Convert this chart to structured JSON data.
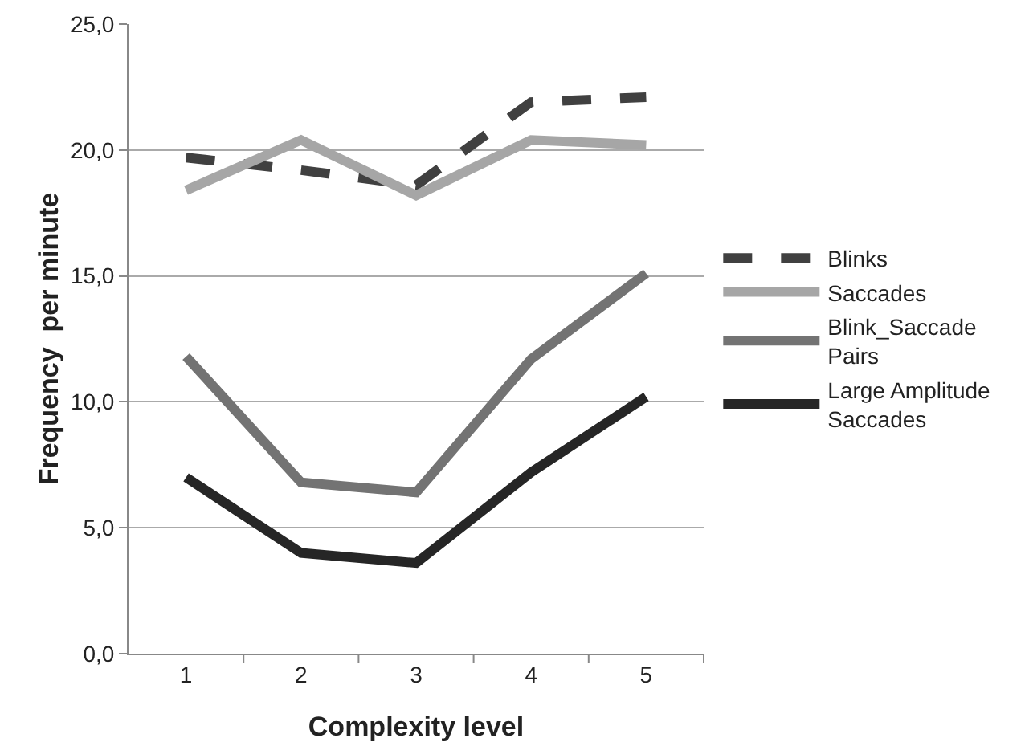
{
  "chart_data": {
    "type": "line",
    "xlabel": "Complexity level",
    "ylabel": "Frequency  per minute",
    "categories": [
      "1",
      "2",
      "3",
      "4",
      "5"
    ],
    "series": [
      {
        "name": "Blinks",
        "color": "#404040",
        "line_style": "dashed",
        "values": [
          19.7,
          19.2,
          18.6,
          21.9,
          22.1
        ]
      },
      {
        "name": "Saccades",
        "color": "#a6a6a6",
        "values": [
          18.4,
          20.4,
          18.2,
          20.4,
          20.2
        ]
      },
      {
        "name": "Blink_Saccade Pairs",
        "color": "#737373",
        "values": [
          11.8,
          6.8,
          6.4,
          11.7,
          15.1
        ]
      },
      {
        "name": "Large Amplitude Saccades",
        "color": "#262626",
        "values": [
          7.0,
          4.0,
          3.6,
          7.2,
          10.2
        ]
      }
    ],
    "ylim": [
      0,
      25
    ],
    "yticks": [
      {
        "value": 0,
        "label": "0,0"
      },
      {
        "value": 5,
        "label": "5,0"
      },
      {
        "value": 10,
        "label": "10,0"
      },
      {
        "value": 15,
        "label": "15,0"
      },
      {
        "value": 20,
        "label": "20,0"
      },
      {
        "value": 25,
        "label": "25,0"
      }
    ],
    "grid": "y",
    "legend": "right",
    "marker": "none",
    "line_style": "solid"
  }
}
